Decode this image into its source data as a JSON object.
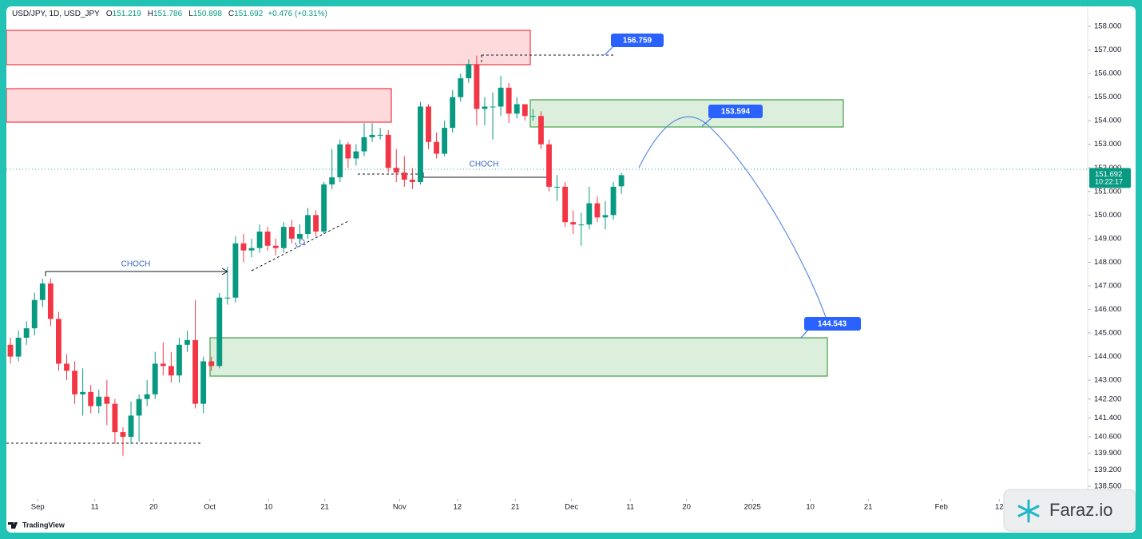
{
  "chart_data": {
    "type": "candlestick",
    "symbol": "USD/JPY, 1D, USD_JPY",
    "header": [
      {
        "key": "O",
        "value": "151.219"
      },
      {
        "key": "H",
        "value": "151.786"
      },
      {
        "key": "L",
        "value": "150.898"
      },
      {
        "key": "C",
        "value": "151.692"
      }
    ],
    "change": "+0.476 (+0.31%)",
    "x": [
      0,
      1,
      2,
      3,
      4,
      5,
      6,
      7,
      8,
      9,
      10,
      11,
      12,
      13,
      14,
      15,
      16,
      17,
      18,
      19,
      20,
      21,
      22,
      23,
      24,
      25,
      26,
      27,
      28,
      29,
      30,
      31,
      32,
      33,
      34,
      35,
      36,
      37,
      38,
      39,
      40,
      41,
      42,
      43,
      44,
      45,
      46,
      47,
      48,
      49,
      50,
      51,
      52,
      53,
      54,
      55,
      56,
      57,
      58,
      59,
      60,
      61,
      62,
      63,
      64,
      65,
      66,
      67,
      68,
      69,
      70,
      71,
      72,
      73,
      74,
      75,
      76
    ],
    "open": [
      144.5,
      144.0,
      144.8,
      145.2,
      146.4,
      147.1,
      145.6,
      143.7,
      143.4,
      142.4,
      142.5,
      141.9,
      142.3,
      142.0,
      140.8,
      140.6,
      141.5,
      142.2,
      142.4,
      143.7,
      143.6,
      143.2,
      144.5,
      144.7,
      142.0,
      143.8,
      143.6,
      146.5,
      146.5,
      148.8,
      148.5,
      148.6,
      149.3,
      148.7,
      148.6,
      149.5,
      149.0,
      149.2,
      150.0,
      149.3,
      151.3,
      151.6,
      153.0,
      152.4,
      152.7,
      153.3,
      153.4,
      153.4,
      152.0,
      151.8,
      151.5,
      151.4,
      154.6,
      153.1,
      152.6,
      153.7,
      155.0,
      155.8,
      156.4,
      154.5,
      154.6,
      154.6,
      155.4,
      154.3,
      154.7,
      154.2,
      154.2,
      153.0,
      151.2,
      151.2,
      149.7,
      149.6,
      149.6,
      150.5,
      149.9,
      150.0,
      151.219
    ],
    "high": [
      144.8,
      145.1,
      145.5,
      146.7,
      147.3,
      147.3,
      145.9,
      144.1,
      143.8,
      143.5,
      142.8,
      142.6,
      143.0,
      142.2,
      141.0,
      142.1,
      142.4,
      143.0,
      144.2,
      144.6,
      144.2,
      144.8,
      145.1,
      146.4,
      144.0,
      144.0,
      146.7,
      147.8,
      149.1,
      149.2,
      149.0,
      149.6,
      149.5,
      149.0,
      149.7,
      149.8,
      149.6,
      150.3,
      150.2,
      151.4,
      152.8,
      153.2,
      153.1,
      153.0,
      153.9,
      153.9,
      153.7,
      153.6,
      152.8,
      152.5,
      152.0,
      154.8,
      154.7,
      153.5,
      154.0,
      155.3,
      156.0,
      156.6,
      156.759,
      155.0,
      155.2,
      155.9,
      155.6,
      155.0,
      154.7,
      154.5,
      154.4,
      153.2,
      151.7,
      151.4,
      150.2,
      150.1,
      151.2,
      150.8,
      150.6,
      151.4,
      151.786
    ],
    "low": [
      143.7,
      143.8,
      144.5,
      144.9,
      146.1,
      145.3,
      143.4,
      143.0,
      142.0,
      141.5,
      141.6,
      141.6,
      141.1,
      140.3,
      139.8,
      140.3,
      140.4,
      141.9,
      142.2,
      143.2,
      142.9,
      142.9,
      144.2,
      141.8,
      141.6,
      143.4,
      143.5,
      146.2,
      146.3,
      148.0,
      148.2,
      148.4,
      148.5,
      148.3,
      148.4,
      148.8,
      148.8,
      149.0,
      149.1,
      149.2,
      151.1,
      151.4,
      152.0,
      152.1,
      152.5,
      153.1,
      153.2,
      151.8,
      151.4,
      151.2,
      151.1,
      151.3,
      152.8,
      152.4,
      152.5,
      153.5,
      154.8,
      155.6,
      153.8,
      153.8,
      153.2,
      154.2,
      153.9,
      154.1,
      154.0,
      154.0,
      152.8,
      151.0,
      150.6,
      149.5,
      149.2,
      148.7,
      149.4,
      149.7,
      149.4,
      149.8,
      150.898
    ],
    "close": [
      144.0,
      144.8,
      145.2,
      146.4,
      147.1,
      145.6,
      143.7,
      143.4,
      142.4,
      142.5,
      141.9,
      142.3,
      142.0,
      140.8,
      140.6,
      141.5,
      142.2,
      142.4,
      143.7,
      143.6,
      143.2,
      144.5,
      144.7,
      142.0,
      143.8,
      143.6,
      146.5,
      146.5,
      148.8,
      148.5,
      148.6,
      149.3,
      148.7,
      148.6,
      149.5,
      149.0,
      149.2,
      150.0,
      149.3,
      151.3,
      151.6,
      153.0,
      152.4,
      152.7,
      153.3,
      153.4,
      153.4,
      152.0,
      151.8,
      151.5,
      151.4,
      154.6,
      153.1,
      152.6,
      153.7,
      155.0,
      155.8,
      156.4,
      154.5,
      154.6,
      154.6,
      155.4,
      154.3,
      154.7,
      154.2,
      154.2,
      153.0,
      151.2,
      151.2,
      149.7,
      149.6,
      149.6,
      150.5,
      149.9,
      150.0,
      151.2,
      151.692
    ],
    "up_color": "#089981",
    "down_color": "#f23645",
    "xlim": [
      -0.5,
      134
    ],
    "xticks": [
      {
        "value": 3.4,
        "label": "Sep"
      },
      {
        "value": 10.5,
        "label": "11"
      },
      {
        "value": 17.8,
        "label": "20"
      },
      {
        "value": 24.8,
        "label": "Oct"
      },
      {
        "value": 32.1,
        "label": "10"
      },
      {
        "value": 39.1,
        "label": "21"
      },
      {
        "value": 48.4,
        "label": "Nov"
      },
      {
        "value": 55.6,
        "label": "12"
      },
      {
        "value": 62.8,
        "label": "21"
      },
      {
        "value": 69.8,
        "label": "Dec"
      },
      {
        "value": 77.1,
        "label": "11"
      },
      {
        "value": 84.1,
        "label": "20"
      },
      {
        "value": 92.3,
        "label": "2025"
      },
      {
        "value": 99.5,
        "label": "10"
      },
      {
        "value": 106.7,
        "label": "21"
      },
      {
        "value": 115.8,
        "label": "Feb"
      },
      {
        "value": 123.0,
        "label": "12"
      }
    ],
    "ylim": [
      138.2,
      158.8
    ],
    "yticks": [
      {
        "value": 158,
        "label": "158.000"
      },
      {
        "value": 157,
        "label": "157.000"
      },
      {
        "value": 156,
        "label": "156.000"
      },
      {
        "value": 155,
        "label": "155.000"
      },
      {
        "value": 154,
        "label": "154.000"
      },
      {
        "value": 153,
        "label": "153.000"
      },
      {
        "value": 152,
        "label": "152.000"
      },
      {
        "value": 151,
        "label": "151.000"
      },
      {
        "value": 150,
        "label": "150.000"
      },
      {
        "value": 149,
        "label": "149.000"
      },
      {
        "value": 148,
        "label": "148.000"
      },
      {
        "value": 147,
        "label": "147.000"
      },
      {
        "value": 146,
        "label": "146.000"
      },
      {
        "value": 145,
        "label": "145.000"
      },
      {
        "value": 144,
        "label": "144.000"
      },
      {
        "value": 143,
        "label": "143.000"
      },
      {
        "value": 142.2,
        "label": "142.200"
      },
      {
        "value": 141.4,
        "label": "141.400"
      },
      {
        "value": 140.6,
        "label": "140.600"
      },
      {
        "value": 139.9,
        "label": "139.900"
      },
      {
        "value": 139.2,
        "label": "139.200"
      },
      {
        "value": 138.5,
        "label": "138.500"
      }
    ],
    "last_price": {
      "value": 151.692,
      "label": "151.692",
      "countdown": "10:22:17"
    },
    "annotations": {
      "choch_1": "CHOCH",
      "choch_2": "CHOCH",
      "lq": "LQ",
      "target_high": "156.759",
      "target_mid": "153.594",
      "target_low": "144.543"
    },
    "footer": "TradingView",
    "watermark": "Faraz.io"
  }
}
